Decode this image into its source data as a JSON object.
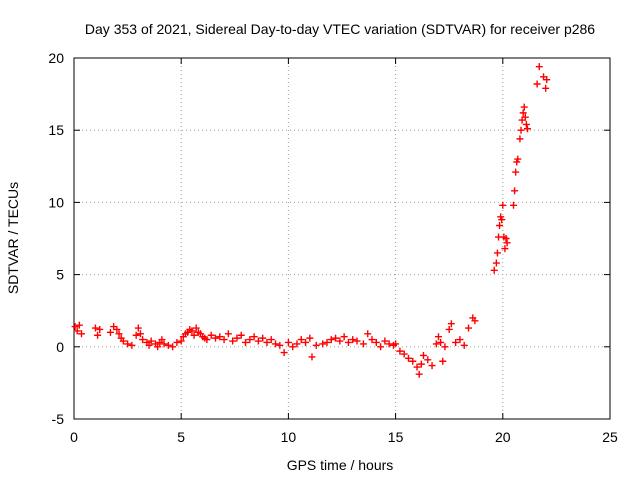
{
  "chart_data": {
    "type": "scatter",
    "title": "Day 353 of 2021, Sidereal Day-to-day VTEC variation (SDTVAR) for receiver p286",
    "xlabel": "GPS time / hours",
    "ylabel": "SDTVAR / TECUs",
    "xlim": [
      0,
      25
    ],
    "ylim": [
      -5,
      20
    ],
    "xticks": [
      "0",
      "5",
      "10",
      "15",
      "20",
      "25"
    ],
    "yticks": [
      "-5",
      "0",
      "5",
      "10",
      "15",
      "20"
    ],
    "grid": true,
    "marker": "+",
    "color": "#ff0000",
    "series": [
      {
        "name": "SDTVAR",
        "x": [
          0.05,
          0.15,
          0.25,
          0.35,
          1.0,
          1.1,
          1.2,
          1.7,
          1.85,
          2.0,
          2.1,
          2.2,
          2.3,
          2.5,
          2.7,
          2.9,
          3.0,
          3.1,
          3.2,
          3.4,
          3.5,
          3.6,
          3.8,
          3.9,
          4.0,
          4.1,
          4.2,
          4.4,
          4.6,
          4.8,
          5.0,
          5.1,
          5.2,
          5.3,
          5.4,
          5.5,
          5.6,
          5.7,
          5.8,
          5.9,
          6.0,
          6.1,
          6.2,
          6.4,
          6.6,
          6.8,
          7.0,
          7.2,
          7.4,
          7.6,
          7.8,
          8.0,
          8.2,
          8.4,
          8.6,
          8.8,
          9.0,
          9.2,
          9.4,
          9.6,
          9.8,
          10.0,
          10.2,
          10.4,
          10.6,
          10.8,
          11.0,
          11.1,
          11.3,
          11.6,
          11.8,
          12.0,
          12.2,
          12.4,
          12.6,
          12.8,
          13.0,
          13.2,
          13.5,
          13.7,
          13.9,
          14.1,
          14.3,
          14.5,
          14.7,
          14.9,
          15.0,
          15.2,
          15.4,
          15.6,
          15.8,
          16.0,
          16.1,
          16.2,
          16.3,
          16.5,
          16.7,
          16.9,
          17.0,
          17.1,
          17.2,
          17.3,
          17.5,
          17.6,
          17.8,
          18.0,
          18.2,
          18.4,
          18.6,
          18.7,
          19.6,
          19.7,
          19.75,
          19.8,
          19.85,
          19.9,
          19.95,
          20.0,
          20.05,
          20.1,
          20.15,
          20.2,
          20.5,
          20.55,
          20.6,
          20.65,
          20.7,
          20.8,
          20.85,
          20.9,
          20.95,
          21.0,
          21.05,
          21.1,
          21.15,
          21.6,
          21.7,
          21.9,
          22.0,
          22.05
        ],
        "y": [
          1.4,
          1.1,
          1.5,
          0.9,
          1.3,
          0.8,
          1.2,
          1.0,
          1.4,
          1.2,
          0.9,
          0.6,
          0.4,
          0.2,
          0.1,
          0.8,
          1.3,
          0.9,
          0.5,
          0.3,
          0.1,
          0.4,
          0.2,
          0.0,
          0.3,
          0.5,
          0.2,
          0.1,
          0.0,
          0.3,
          0.4,
          0.7,
          0.9,
          1.0,
          1.2,
          1.1,
          0.8,
          1.3,
          1.0,
          0.9,
          0.7,
          0.6,
          0.5,
          0.8,
          0.6,
          0.7,
          0.5,
          0.9,
          0.4,
          0.6,
          0.8,
          0.3,
          0.5,
          0.7,
          0.4,
          0.6,
          0.3,
          0.5,
          0.2,
          0.1,
          -0.4,
          0.3,
          0.0,
          0.2,
          0.5,
          0.3,
          0.6,
          -0.7,
          0.1,
          0.2,
          0.3,
          0.5,
          0.6,
          0.4,
          0.7,
          0.3,
          0.5,
          0.4,
          0.2,
          0.9,
          0.5,
          0.3,
          0.0,
          0.4,
          0.2,
          0.1,
          0.2,
          -0.3,
          -0.5,
          -0.8,
          -1.0,
          -1.4,
          -1.9,
          -1.2,
          -0.6,
          -0.9,
          -1.3,
          0.2,
          0.7,
          0.3,
          -1.0,
          0.0,
          1.2,
          1.6,
          0.3,
          0.5,
          0.1,
          1.3,
          2.0,
          1.8,
          5.3,
          5.8,
          6.5,
          7.6,
          8.4,
          9.0,
          8.8,
          9.8,
          7.6,
          6.8,
          7.5,
          7.2,
          9.8,
          10.8,
          12.1,
          12.8,
          13.0,
          14.4,
          15.0,
          15.7,
          16.2,
          16.6,
          15.9,
          15.4,
          15.1,
          18.2,
          19.4,
          18.7,
          17.9,
          18.5
        ]
      }
    ]
  }
}
